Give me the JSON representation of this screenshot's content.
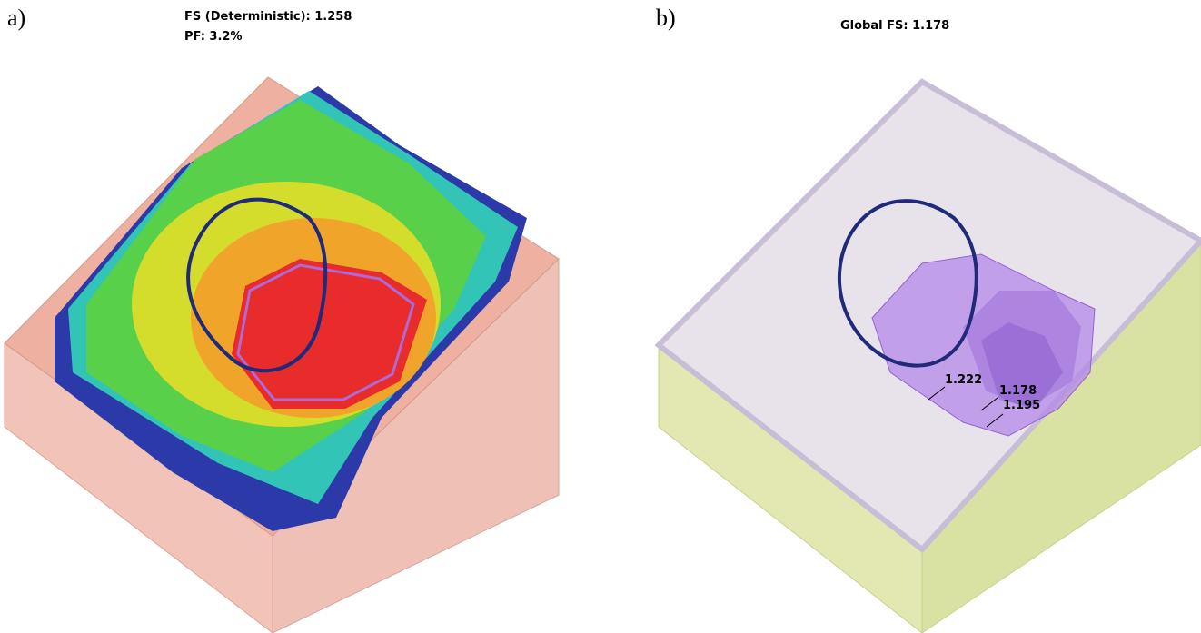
{
  "panels": [
    {
      "label": "a)",
      "title_lines": [
        "FS (Deterministic): 1.258",
        "PF: 3.2%"
      ]
    },
    {
      "label": "b)",
      "title_lines": [
        "Global FS: 1.178"
      ],
      "annotations": [
        "1.222",
        "1.178",
        "1.195"
      ]
    }
  ]
}
